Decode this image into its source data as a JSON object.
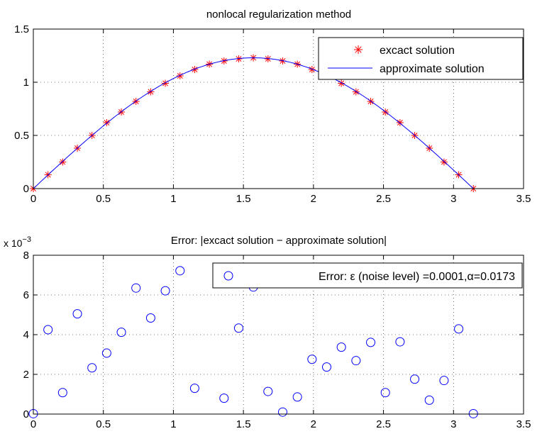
{
  "chart_data": [
    {
      "type": "line",
      "title": "nonlocal regularization method",
      "xlabel": "",
      "ylabel": "",
      "xlim": [
        0,
        3.5
      ],
      "ylim": [
        0,
        1.5
      ],
      "xticks": [
        "0",
        "0.5",
        "1",
        "1.5",
        "2",
        "2.5",
        "3",
        "3.5"
      ],
      "yticks": [
        "0",
        "0.5",
        "1",
        "1.5"
      ],
      "grid": true,
      "legend_position": "top-right",
      "x": [
        0,
        0.1047,
        0.2094,
        0.3142,
        0.4189,
        0.5236,
        0.6283,
        0.733,
        0.8378,
        0.9425,
        1.0472,
        1.1519,
        1.2566,
        1.3614,
        1.4661,
        1.5708,
        1.6755,
        1.7802,
        1.885,
        1.9897,
        2.0944,
        2.1991,
        2.3038,
        2.4086,
        2.5133,
        2.618,
        2.7227,
        2.8274,
        2.9322,
        3.0369,
        3.1416
      ],
      "series": [
        {
          "name": "excact solution",
          "marker": "asterisk",
          "color": "#ff0000",
          "values": [
            0,
            0.13,
            0.25,
            0.38,
            0.5,
            0.62,
            0.72,
            0.82,
            0.91,
            0.99,
            1.06,
            1.12,
            1.17,
            1.2,
            1.22,
            1.23,
            1.22,
            1.2,
            1.17,
            1.12,
            1.06,
            0.99,
            0.91,
            0.82,
            0.72,
            0.62,
            0.5,
            0.38,
            0.25,
            0.13,
            0
          ]
        },
        {
          "name": "approximate solution",
          "marker": "line",
          "color": "#0000ff",
          "values": [
            0,
            0.13,
            0.25,
            0.38,
            0.5,
            0.62,
            0.72,
            0.82,
            0.91,
            0.99,
            1.06,
            1.12,
            1.17,
            1.2,
            1.22,
            1.23,
            1.22,
            1.2,
            1.17,
            1.12,
            1.06,
            0.99,
            0.91,
            0.82,
            0.72,
            0.62,
            0.5,
            0.38,
            0.25,
            0.13,
            0
          ]
        }
      ]
    },
    {
      "type": "scatter",
      "title": "Error: |excact solution − approximate solution|",
      "xlabel": "",
      "ylabel": "",
      "scale_label": "x 10",
      "scale_exponent": "−3",
      "xlim": [
        0,
        3.5
      ],
      "ylim": [
        0,
        8
      ],
      "xticks": [
        "0",
        "0.5",
        "1",
        "1.5",
        "2",
        "2.5",
        "3",
        "3.5"
      ],
      "yticks": [
        "0",
        "2",
        "4",
        "6",
        "8"
      ],
      "grid": true,
      "legend_position": "top-right",
      "series": [
        {
          "name": "Error: ε (noise level) =0.0001,α=0.0173",
          "marker": "circle",
          "color": "#0000ff",
          "x": [
            0,
            0.1047,
            0.2094,
            0.3142,
            0.4189,
            0.5236,
            0.6283,
            0.733,
            0.8378,
            0.9425,
            1.0472,
            1.1519,
            1.3614,
            1.4661,
            1.5708,
            1.6755,
            1.7802,
            1.885,
            1.9897,
            2.0944,
            2.1991,
            2.3038,
            2.4086,
            2.5133,
            2.618,
            2.7227,
            2.8274,
            2.9322,
            3.0369,
            3.1416
          ],
          "values": [
            0.02,
            4.25,
            1.08,
            5.05,
            2.33,
            3.07,
            4.12,
            6.35,
            4.84,
            6.21,
            7.22,
            1.3,
            0.8,
            4.33,
            6.4,
            1.14,
            0.1,
            0.86,
            2.76,
            2.37,
            3.37,
            2.69,
            3.61,
            1.08,
            3.64,
            1.76,
            0.7,
            1.69,
            4.29,
            0.02
          ]
        }
      ]
    }
  ]
}
